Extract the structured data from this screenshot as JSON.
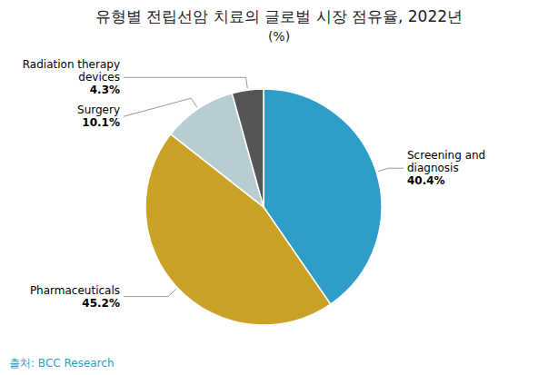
{
  "chart_data": {
    "type": "pie",
    "title": "유형별 전립선암 치료의 글로벌 시장 점유율, 2022년",
    "subtitle": "(%)",
    "categories": [
      "Screening and\ndiagnosis",
      "Pharmaceuticals",
      "Surgery",
      "Radiation therapy\ndevices"
    ],
    "values": [
      40.4,
      45.2,
      10.1,
      4.3
    ],
    "value_labels": [
      "40.4%",
      "45.2%",
      "10.1%",
      "4.3%"
    ],
    "colors": [
      "#2E9DC8",
      "#C9A227",
      "#B8CDD1",
      "#555555"
    ],
    "data_labels": true,
    "source": "출처: BCC Research",
    "source_color": "#2E9DC8"
  }
}
